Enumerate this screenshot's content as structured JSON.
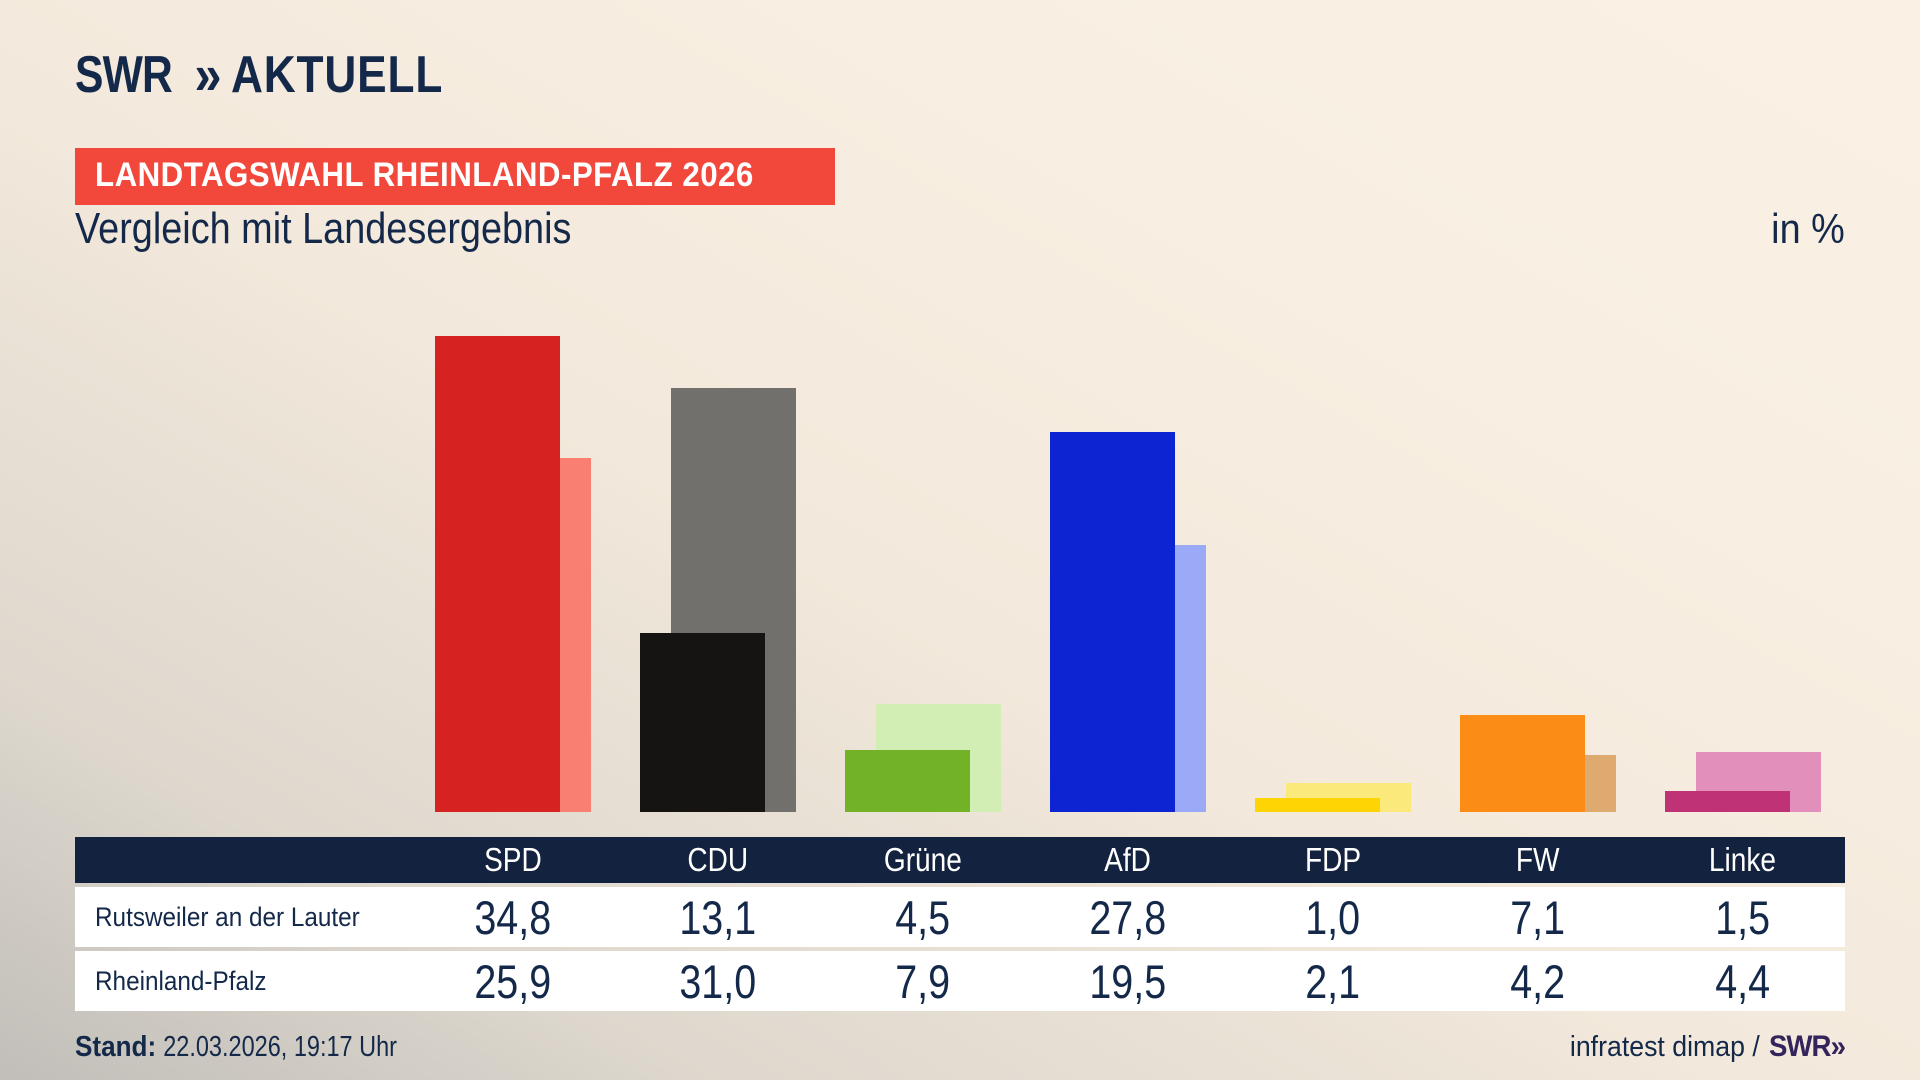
{
  "header": {
    "logo": {
      "brand": "SWR",
      "chevron": "»",
      "product": "AKTUELL"
    },
    "badge": "LANDTAGSWAHL RHEINLAND-PFALZ 2026",
    "title": "Vergleich mit Landesergebnis",
    "unit": "in %"
  },
  "chart_data": {
    "type": "bar",
    "title": "Vergleich mit Landesergebnis",
    "unit": "in %",
    "legend_position": "table-below",
    "grid": false,
    "value_axis_hidden": true,
    "ylim": [
      0,
      38
    ],
    "categories": [
      "SPD",
      "CDU",
      "Grüne",
      "AfD",
      "FDP",
      "FW",
      "Linke"
    ],
    "series": [
      {
        "name": "Rutsweiler an der Lauter",
        "role": "municipality-result-foreground",
        "values": [
          34.8,
          13.1,
          4.5,
          27.8,
          1.0,
          7.1,
          1.5
        ],
        "display": [
          "34,8",
          "13,1",
          "4,5",
          "27,8",
          "1,0",
          "7,1",
          "1,5"
        ],
        "colors": [
          "#d62322",
          "#151412",
          "#72b226",
          "#0c24d2",
          "#ffd404",
          "#fb8d16",
          "#c03276"
        ]
      },
      {
        "name": "Rheinland-Pfalz",
        "role": "state-result-background",
        "values": [
          25.9,
          31.0,
          7.9,
          19.5,
          2.1,
          4.2,
          4.4
        ],
        "display": [
          "25,9",
          "31,0",
          "7,9",
          "19,5",
          "2,1",
          "4,2",
          "4,4"
        ],
        "colors": [
          "#f97f73",
          "#72706d",
          "#d3eeb4",
          "#9baaf7",
          "#fbe97c",
          "#dfaa70",
          "#e28fbc"
        ]
      }
    ]
  },
  "footer": {
    "stand_label": "Stand:",
    "stand_value": "22.03.2026, 19:17 Uhr",
    "source": "infratest dimap /",
    "source_logo": {
      "brand": "SWR",
      "chevron": "»"
    }
  },
  "colors": {
    "accent_red": "#f2483c",
    "header_navy": "#13233f",
    "text_navy": "#14294a",
    "swr_violet": "#33245c",
    "row_bg": "#ffffff"
  }
}
